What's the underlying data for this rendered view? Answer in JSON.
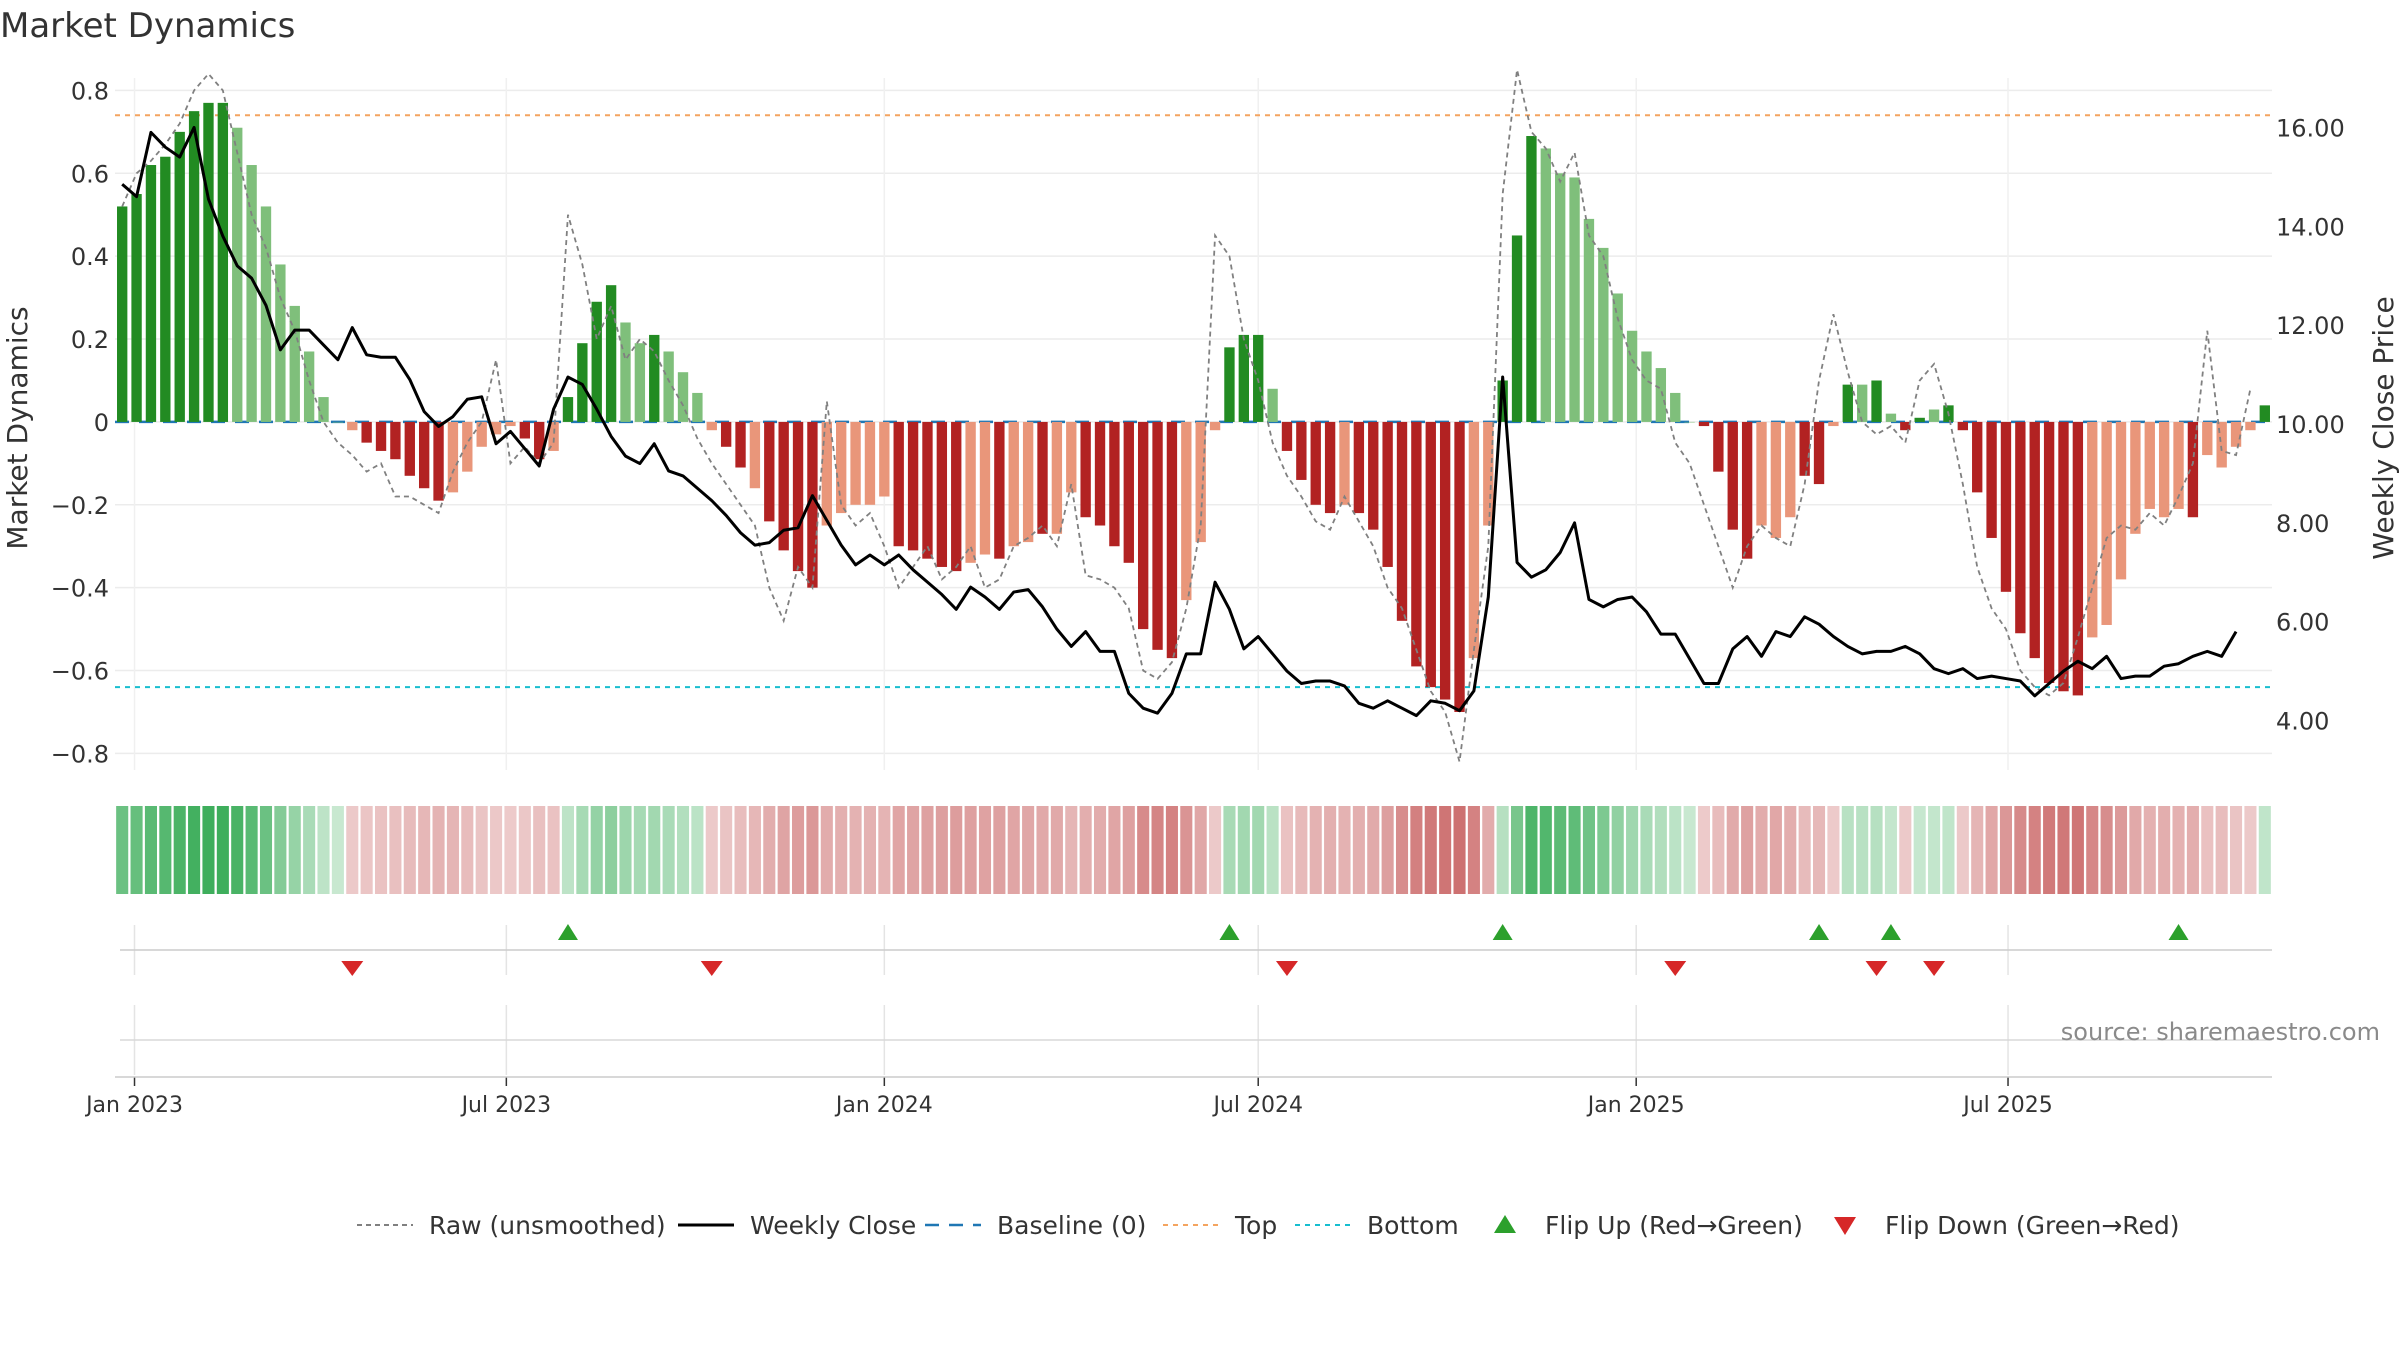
{
  "title": "Market Dynamics",
  "source": "source: sharemaestro.com",
  "colors": {
    "dark_green": "#228B22",
    "light_green": "#7FBF7B",
    "dark_red": "#B22222",
    "light_red": "#E9967A",
    "close_line": "#000000",
    "raw_line": "#808080",
    "baseline": "#1F77B4",
    "top": "#F4A460",
    "bottom": "#17BECF"
  },
  "chart_data": {
    "type": "bar",
    "left_axis": {
      "label": "Market Dynamics",
      "ylim": [
        -0.84,
        0.83
      ],
      "ticks": [
        "0.8",
        "0.6",
        "0.4",
        "0.2",
        "0",
        "−0.2",
        "−0.4",
        "−0.6",
        "−0.8"
      ],
      "tick_values": [
        0.8,
        0.6,
        0.4,
        0.2,
        0,
        -0.2,
        -0.4,
        -0.6,
        -0.8
      ]
    },
    "right_axis": {
      "label": "Weekly Close Price",
      "ylim": [
        3.0,
        17.0
      ],
      "ticks": [
        "16.00",
        "14.00",
        "12.00",
        "10.00",
        "8.00",
        "6.00",
        "4.00"
      ],
      "tick_values": [
        16,
        14,
        12,
        10,
        8,
        6,
        4
      ]
    },
    "x_axis": {
      "start_date": "2022-12-26",
      "end_date": "2025-09-15",
      "tick_labels": [
        "Jan 2023",
        "Jul 2023",
        "Jan 2024",
        "Jul 2024",
        "Jan 2025",
        "Jul 2025"
      ],
      "tick_dates": [
        "2023-01-01",
        "2023-07-01",
        "2024-01-01",
        "2024-07-01",
        "2025-01-01",
        "2025-07-01"
      ]
    },
    "reference_lines": {
      "baseline": 0,
      "top": 0.74,
      "bottom": -0.64
    },
    "grid": true,
    "legend_position": "bottom",
    "legend": [
      "Raw (unsmoothed)",
      "Weekly Close",
      "Baseline (0)",
      "Top",
      "Bottom",
      "Flip Up (Red→Green)",
      "Flip Down (Green→Red)"
    ],
    "series": [
      {
        "name": "Market Dynamics",
        "values": [
          0.52,
          0.55,
          0.62,
          0.64,
          0.7,
          0.75,
          0.77,
          0.77,
          0.71,
          0.62,
          0.52,
          0.38,
          0.28,
          0.17,
          0.06,
          0,
          -0.02,
          -0.05,
          -0.07,
          -0.09,
          -0.13,
          -0.16,
          -0.19,
          -0.17,
          -0.12,
          -0.06,
          -0.03,
          -0.01,
          -0.04,
          -0.09,
          -0.07,
          0.06,
          0.19,
          0.29,
          0.33,
          0.24,
          0.19,
          0.21,
          0.17,
          0.12,
          0.07,
          -0.02,
          -0.06,
          -0.11,
          -0.16,
          -0.24,
          -0.31,
          -0.36,
          -0.4,
          -0.25,
          -0.22,
          -0.2,
          -0.2,
          -0.18,
          -0.3,
          -0.31,
          -0.33,
          -0.35,
          -0.36,
          -0.34,
          -0.32,
          -0.33,
          -0.3,
          -0.29,
          -0.27,
          -0.27,
          -0.17,
          -0.23,
          -0.25,
          -0.3,
          -0.34,
          -0.5,
          -0.55,
          -0.57,
          -0.43,
          -0.29,
          -0.02,
          0.18,
          0.21,
          0.21,
          0.08,
          -0.07,
          -0.14,
          -0.2,
          -0.22,
          -0.2,
          -0.22,
          -0.26,
          -0.35,
          -0.48,
          -0.59,
          -0.64,
          -0.67,
          -0.7,
          -0.57,
          -0.25,
          0.1,
          0.45,
          0.69,
          0.66,
          0.6,
          0.59,
          0.49,
          0.42,
          0.31,
          0.22,
          0.17,
          0.13,
          0.07,
          0,
          -0.01,
          -0.12,
          -0.26,
          -0.33,
          -0.25,
          -0.28,
          -0.23,
          -0.13,
          -0.15,
          -0.01,
          0.09,
          0.09,
          0.1,
          0.02,
          -0.02,
          0.01,
          0.03,
          0.04,
          -0.02,
          -0.17,
          -0.28,
          -0.41,
          -0.51,
          -0.57,
          -0.63,
          -0.65,
          -0.66,
          -0.52,
          -0.49,
          -0.38,
          -0.27,
          -0.21,
          -0.23,
          -0.21,
          -0.23,
          -0.08,
          -0.11,
          -0.06,
          -0.02,
          0.04
        ],
        "colors": [
          "dg",
          "dg",
          "dg",
          "dg",
          "dg",
          "dg",
          "dg",
          "dg",
          "lg",
          "lg",
          "lg",
          "lg",
          "lg",
          "lg",
          "lg",
          "lg",
          "lr",
          "dr",
          "dr",
          "dr",
          "dr",
          "dr",
          "dr",
          "lr",
          "lr",
          "lr",
          "lr",
          "lr",
          "dr",
          "dr",
          "lr",
          "dg",
          "dg",
          "dg",
          "dg",
          "lg",
          "lg",
          "dg",
          "lg",
          "lg",
          "lg",
          "lr",
          "dr",
          "dr",
          "lr",
          "dr",
          "dr",
          "dr",
          "dr",
          "lr",
          "lr",
          "lr",
          "lr",
          "lr",
          "dr",
          "dr",
          "dr",
          "dr",
          "dr",
          "lr",
          "lr",
          "dr",
          "lr",
          "lr",
          "dr",
          "lr",
          "lr",
          "dr",
          "dr",
          "dr",
          "dr",
          "dr",
          "dr",
          "dr",
          "lr",
          "lr",
          "lr",
          "dg",
          "dg",
          "dg",
          "lg",
          "dr",
          "dr",
          "dr",
          "dr",
          "lr",
          "dr",
          "dr",
          "dr",
          "dr",
          "dr",
          "dr",
          "dr",
          "dr",
          "lr",
          "lr",
          "dg",
          "dg",
          "dg",
          "lg",
          "lg",
          "lg",
          "lg",
          "lg",
          "lg",
          "lg",
          "lg",
          "lg",
          "lg",
          "lg",
          "dr",
          "dr",
          "dr",
          "dr",
          "lr",
          "lr",
          "lr",
          "dr",
          "dr",
          "lr",
          "dg",
          "lg",
          "dg",
          "lg",
          "dr",
          "dg",
          "lg",
          "dg",
          "dr",
          "dr",
          "dr",
          "dr",
          "dr",
          "dr",
          "dr",
          "dr",
          "dr",
          "lr",
          "lr",
          "lr",
          "lr",
          "lr",
          "lr",
          "lr",
          "dr",
          "lr",
          "lr",
          "lr",
          "lr",
          "dg"
        ]
      },
      {
        "name": "Raw (unsmoothed)",
        "values": [
          0.52,
          0.6,
          0.63,
          0.67,
          0.72,
          0.8,
          0.84,
          0.8,
          0.65,
          0.5,
          0.42,
          0.3,
          0.22,
          0.1,
          0.0,
          -0.05,
          -0.08,
          -0.12,
          -0.1,
          -0.18,
          -0.18,
          -0.2,
          -0.22,
          -0.12,
          -0.05,
          0.0,
          0.15,
          -0.1,
          -0.06,
          -0.1,
          -0.05,
          0.5,
          0.38,
          0.2,
          0.28,
          0.15,
          0.2,
          0.17,
          0.1,
          0.04,
          -0.04,
          -0.1,
          -0.15,
          -0.2,
          -0.25,
          -0.4,
          -0.48,
          -0.35,
          -0.4,
          0.05,
          -0.2,
          -0.25,
          -0.22,
          -0.3,
          -0.4,
          -0.35,
          -0.3,
          -0.38,
          -0.35,
          -0.3,
          -0.4,
          -0.38,
          -0.3,
          -0.28,
          -0.25,
          -0.3,
          -0.15,
          -0.37,
          -0.38,
          -0.4,
          -0.45,
          -0.6,
          -0.62,
          -0.58,
          -0.45,
          -0.25,
          0.45,
          0.4,
          0.2,
          0.1,
          -0.05,
          -0.13,
          -0.18,
          -0.24,
          -0.26,
          -0.18,
          -0.24,
          -0.3,
          -0.4,
          -0.45,
          -0.55,
          -0.65,
          -0.7,
          -0.82,
          -0.55,
          -0.3,
          0.55,
          0.85,
          0.7,
          0.66,
          0.58,
          0.65,
          0.45,
          0.4,
          0.25,
          0.15,
          0.1,
          0.08,
          -0.05,
          -0.1,
          -0.2,
          -0.3,
          -0.4,
          -0.3,
          -0.25,
          -0.28,
          -0.3,
          -0.15,
          0.1,
          0.26,
          0.12,
          0.0,
          -0.03,
          -0.01,
          -0.05,
          0.1,
          0.14,
          0.02,
          -0.15,
          -0.35,
          -0.45,
          -0.5,
          -0.6,
          -0.64,
          -0.66,
          -0.63,
          -0.52,
          -0.4,
          -0.28,
          -0.25,
          -0.26,
          -0.22,
          -0.25,
          -0.18,
          -0.1,
          0.22,
          -0.07,
          -0.08,
          0.08
        ],
        "style": "dashed"
      },
      {
        "name": "Weekly Close",
        "values": [
          14.85,
          14.6,
          15.9,
          15.6,
          15.4,
          16.0,
          14.55,
          13.8,
          13.2,
          12.95,
          12.4,
          11.5,
          11.9,
          11.9,
          11.6,
          11.3,
          11.95,
          11.4,
          11.35,
          11.35,
          10.9,
          10.25,
          9.95,
          10.15,
          10.5,
          10.55,
          9.6,
          9.85,
          9.5,
          9.15,
          10.3,
          10.95,
          10.8,
          10.3,
          9.75,
          9.35,
          9.2,
          9.6,
          9.05,
          8.95,
          8.7,
          8.45,
          8.15,
          7.8,
          7.55,
          7.6,
          7.85,
          7.9,
          8.55,
          8.05,
          7.55,
          7.15,
          7.35,
          7.15,
          7.35,
          7.05,
          6.8,
          6.55,
          6.25,
          6.7,
          6.5,
          6.25,
          6.6,
          6.65,
          6.3,
          5.85,
          5.5,
          5.8,
          5.4,
          5.4,
          4.55,
          4.25,
          4.15,
          4.55,
          5.35,
          5.35,
          6.8,
          6.25,
          5.45,
          5.7,
          5.35,
          5.0,
          4.75,
          4.8,
          4.8,
          4.7,
          4.35,
          4.25,
          4.4,
          4.25,
          4.1,
          4.4,
          4.35,
          4.2,
          4.6,
          6.5,
          10.95,
          7.2,
          6.9,
          7.05,
          7.4,
          8.0,
          6.45,
          6.3,
          6.45,
          6.5,
          6.2,
          5.75,
          5.75,
          5.25,
          4.75,
          4.75,
          5.45,
          5.7,
          5.3,
          5.8,
          5.7,
          6.1,
          5.95,
          5.7,
          5.5,
          5.35,
          5.4,
          5.4,
          5.5,
          5.35,
          5.05,
          4.95,
          5.05,
          4.85,
          4.9,
          4.85,
          4.8,
          4.5,
          4.75,
          5.0,
          5.2,
          5.05,
          5.3,
          4.85,
          4.9,
          4.9,
          5.1,
          5.15,
          5.3,
          5.4,
          5.3,
          5.8
        ]
      }
    ],
    "flips": {
      "up_indices": [
        31,
        77,
        96,
        118,
        123,
        143
      ],
      "down_indices": [
        16,
        41,
        81,
        108,
        122,
        126
      ]
    }
  }
}
